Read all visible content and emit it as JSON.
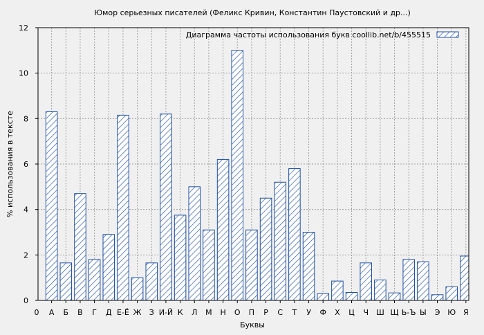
{
  "chart_data": {
    "type": "bar",
    "title": "Юмор серьезных писателей (Феликс Кривин, Константин Паустовский и др...)",
    "xlabel": "Буквы",
    "ylabel": "% использования в тексте",
    "ylim": [
      0,
      12
    ],
    "yticks": [
      "0",
      "2",
      "4",
      "6",
      "8",
      "10",
      "12"
    ],
    "x_start_label": "0",
    "categories": [
      "А",
      "Б",
      "В",
      "Г",
      "Д",
      "Е-Ё",
      "Ж",
      "З",
      "И-Й",
      "К",
      "Л",
      "М",
      "Н",
      "О",
      "П",
      "Р",
      "С",
      "Т",
      "У",
      "Ф",
      "Х",
      "Ц",
      "Ч",
      "Ш",
      "Щ",
      "Ь-Ъ",
      "Ы",
      "Э",
      "Ю",
      "Я"
    ],
    "values": [
      8.3,
      1.65,
      4.7,
      1.8,
      2.9,
      8.15,
      1.0,
      1.65,
      8.2,
      3.75,
      5.0,
      3.1,
      6.2,
      11.0,
      3.1,
      4.5,
      5.2,
      5.8,
      3.0,
      0.3,
      0.85,
      0.35,
      1.65,
      0.9,
      0.33,
      1.8,
      1.7,
      0.25,
      0.6,
      1.95
    ],
    "grid": true,
    "legend": {
      "position": "top-right",
      "label": "Диаграмма частоты использования букв  coollib.net/b/455515"
    },
    "colors": {
      "background": "#f0f0f0",
      "bar_stroke": "#1f4fa0",
      "hatch": "#1f4fa0",
      "grid": "#a0a0a0"
    }
  }
}
